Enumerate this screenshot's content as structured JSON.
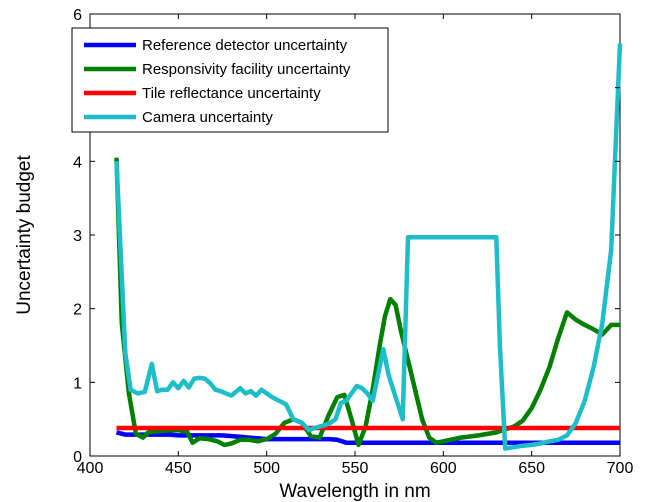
{
  "chart_data": {
    "type": "line",
    "title": "",
    "xlabel": "Wavelength in nm",
    "ylabel": "Uncertainty budget",
    "xlim": [
      400,
      700
    ],
    "ylim": [
      0,
      6
    ],
    "xticks": [
      400,
      450,
      500,
      550,
      600,
      650,
      700
    ],
    "yticks": [
      0,
      1,
      2,
      3,
      4,
      5,
      6
    ],
    "grid": false,
    "legend_position": "top-left",
    "series": [
      {
        "name": "Reference detector uncertainty",
        "color": "#0000ff",
        "x": [
          415,
          420,
          425,
          430,
          435,
          440,
          445,
          450,
          455,
          460,
          465,
          470,
          475,
          480,
          485,
          490,
          495,
          500,
          505,
          510,
          515,
          520,
          525,
          530,
          535,
          540,
          545,
          550,
          560,
          570,
          580,
          590,
          600,
          610,
          620,
          630,
          640,
          650,
          660,
          670,
          680,
          690,
          700
        ],
        "y": [
          0.32,
          0.29,
          0.29,
          0.29,
          0.29,
          0.29,
          0.29,
          0.28,
          0.28,
          0.28,
          0.28,
          0.28,
          0.28,
          0.27,
          0.26,
          0.25,
          0.24,
          0.23,
          0.23,
          0.23,
          0.23,
          0.23,
          0.23,
          0.23,
          0.23,
          0.22,
          0.18,
          0.18,
          0.18,
          0.18,
          0.18,
          0.18,
          0.18,
          0.18,
          0.18,
          0.18,
          0.18,
          0.18,
          0.18,
          0.18,
          0.18,
          0.18,
          0.18
        ]
      },
      {
        "name": "Responsivity facility uncertainty",
        "color": "#008000",
        "x": [
          415,
          418,
          422,
          426,
          430,
          433,
          436,
          440,
          445,
          450,
          455,
          458,
          462,
          467,
          472,
          476,
          480,
          485,
          490,
          495,
          500,
          505,
          510,
          515,
          520,
          525,
          530,
          535,
          540,
          544,
          548,
          552,
          556,
          560,
          564,
          567,
          570,
          573,
          576,
          580,
          584,
          588,
          592,
          596,
          600,
          610,
          620,
          630,
          640,
          645,
          650,
          655,
          660,
          665,
          670,
          675,
          680,
          685,
          690,
          695,
          700
        ],
        "y": [
          4.05,
          1.8,
          0.85,
          0.3,
          0.25,
          0.32,
          0.33,
          0.34,
          0.35,
          0.35,
          0.33,
          0.18,
          0.24,
          0.23,
          0.2,
          0.15,
          0.17,
          0.22,
          0.22,
          0.2,
          0.23,
          0.3,
          0.45,
          0.5,
          0.45,
          0.27,
          0.25,
          0.55,
          0.8,
          0.83,
          0.5,
          0.15,
          0.4,
          0.9,
          1.5,
          1.9,
          2.13,
          2.05,
          1.7,
          1.3,
          0.9,
          0.5,
          0.25,
          0.18,
          0.2,
          0.25,
          0.28,
          0.32,
          0.4,
          0.48,
          0.65,
          0.9,
          1.2,
          1.6,
          1.95,
          1.85,
          1.78,
          1.72,
          1.65,
          1.78,
          1.78
        ]
      },
      {
        "name": "Tile reflectance uncertainty",
        "color": "#ff0000",
        "x": [
          415,
          700
        ],
        "y": [
          0.38,
          0.38
        ]
      },
      {
        "name": "Camera uncertainty",
        "color": "#1ebec8",
        "x": [
          415,
          420,
          423,
          427,
          431,
          435,
          438,
          441,
          444,
          447,
          450,
          453,
          456,
          459,
          462,
          465,
          468,
          471,
          474,
          477,
          480,
          485,
          488,
          491,
          494,
          497,
          500,
          503,
          507,
          511,
          515,
          520,
          524,
          527,
          530,
          533,
          536,
          539,
          542,
          545,
          548,
          551,
          554,
          557,
          560,
          563,
          566,
          569,
          573,
          577,
          580,
          585,
          590,
          595,
          600,
          605,
          610,
          615,
          620,
          625,
          630,
          632,
          635,
          640,
          645,
          650,
          655,
          660,
          665,
          670,
          675,
          680,
          685,
          690,
          695,
          700
        ],
        "y": [
          4.0,
          1.4,
          0.9,
          0.85,
          0.87,
          1.25,
          0.88,
          0.9,
          0.9,
          1.0,
          0.92,
          1.02,
          0.93,
          1.05,
          1.06,
          1.05,
          0.99,
          0.9,
          0.88,
          0.85,
          0.82,
          0.92,
          0.85,
          0.88,
          0.82,
          0.9,
          0.85,
          0.8,
          0.75,
          0.7,
          0.5,
          0.45,
          0.35,
          0.38,
          0.4,
          0.42,
          0.45,
          0.5,
          0.72,
          0.75,
          0.85,
          0.95,
          0.92,
          0.85,
          0.75,
          1.1,
          1.45,
          1.1,
          0.8,
          0.5,
          2.97,
          2.97,
          2.97,
          2.97,
          2.97,
          2.97,
          2.97,
          2.97,
          2.97,
          2.97,
          2.97,
          1.5,
          0.1,
          0.12,
          0.14,
          0.15,
          0.17,
          0.2,
          0.22,
          0.28,
          0.45,
          0.75,
          1.2,
          1.8,
          2.8,
          5.6
        ]
      }
    ]
  }
}
